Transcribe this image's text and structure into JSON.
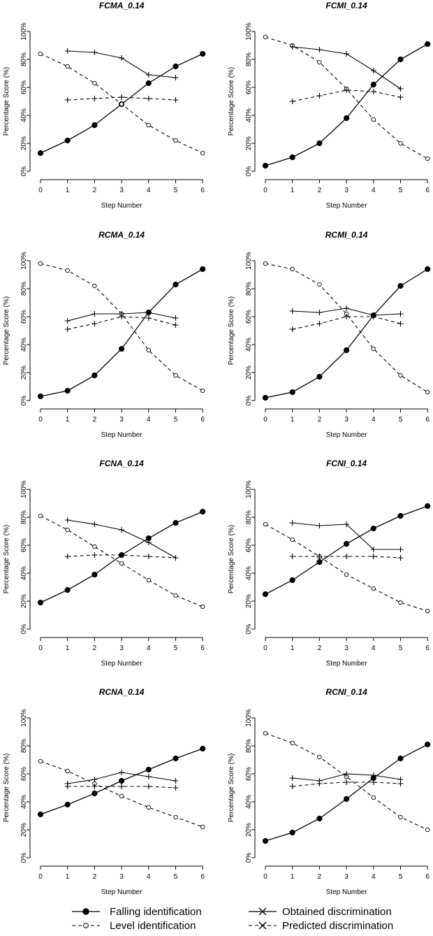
{
  "legend": {
    "falling": "Falling identification",
    "level": "Level identification",
    "obtained": "Obtained discrimination",
    "predicted": "Predicted discrimination"
  },
  "chart_data": [
    {
      "type": "line",
      "title": "FCMA_0.14",
      "xlabel": "Step Number",
      "ylabel": "Percentage Score (%)",
      "ylim": [
        0,
        100
      ],
      "x_ticks": [
        "0",
        "1",
        "2",
        "3",
        "4",
        "5",
        "6"
      ],
      "y_ticks": [
        "0%",
        "20%",
        "40%",
        "60%",
        "80%",
        "100%"
      ],
      "series": [
        {
          "key": "falling",
          "name": "Falling identification",
          "x": [
            0,
            1,
            2,
            3,
            4,
            5,
            6
          ],
          "values": [
            13,
            22,
            33,
            48,
            63,
            75,
            84
          ]
        },
        {
          "key": "level",
          "name": "Level identification",
          "x": [
            0,
            1,
            2,
            3,
            4,
            5,
            6
          ],
          "values": [
            84,
            75,
            63,
            48,
            33,
            22,
            13
          ]
        },
        {
          "key": "obtained",
          "name": "Obtained discrimination",
          "x": [
            1,
            2,
            3,
            4,
            5
          ],
          "values": [
            86,
            85,
            81,
            69,
            67
          ]
        },
        {
          "key": "predicted",
          "name": "Predicted discrimination",
          "x": [
            1,
            2,
            3,
            4,
            5
          ],
          "values": [
            51,
            52,
            53,
            52,
            51
          ]
        }
      ]
    },
    {
      "type": "line",
      "title": "FCMI_0.14",
      "xlabel": "Step Number",
      "ylabel": "Percentage Score (%)",
      "ylim": [
        0,
        100
      ],
      "x_ticks": [
        "0",
        "1",
        "2",
        "3",
        "4",
        "5",
        "6"
      ],
      "y_ticks": [
        "0%",
        "20%",
        "40%",
        "60%",
        "80%",
        "100%"
      ],
      "series": [
        {
          "key": "falling",
          "name": "Falling identification",
          "x": [
            0,
            1,
            2,
            3,
            4,
            5,
            6
          ],
          "values": [
            4,
            10,
            20,
            38,
            62,
            80,
            91
          ]
        },
        {
          "key": "level",
          "name": "Level identification",
          "x": [
            0,
            1,
            2,
            3,
            4,
            5,
            6
          ],
          "values": [
            96,
            90,
            78,
            59,
            37,
            20,
            9
          ]
        },
        {
          "key": "obtained",
          "name": "Obtained discrimination",
          "x": [
            1,
            2,
            3,
            4,
            5
          ],
          "values": [
            89,
            87,
            84,
            72,
            59
          ]
        },
        {
          "key": "predicted",
          "name": "Predicted discrimination",
          "x": [
            1,
            2,
            3,
            4,
            5
          ],
          "values": [
            50,
            54,
            58,
            57,
            53
          ]
        }
      ]
    },
    {
      "type": "line",
      "title": "RCMA_0.14",
      "xlabel": "Step Number",
      "ylabel": "Percentage Score (%)",
      "ylim": [
        0,
        100
      ],
      "x_ticks": [
        "0",
        "1",
        "2",
        "3",
        "4",
        "5",
        "6"
      ],
      "y_ticks": [
        "0%",
        "20%",
        "40%",
        "60%",
        "80%",
        "100%"
      ],
      "series": [
        {
          "key": "falling",
          "name": "Falling identification",
          "x": [
            0,
            1,
            2,
            3,
            4,
            5,
            6
          ],
          "values": [
            3,
            7,
            18,
            37,
            63,
            83,
            94
          ]
        },
        {
          "key": "level",
          "name": "Level identification",
          "x": [
            0,
            1,
            2,
            3,
            4,
            5,
            6
          ],
          "values": [
            98,
            93,
            82,
            62,
            36,
            18,
            7
          ]
        },
        {
          "key": "obtained",
          "name": "Obtained discrimination",
          "x": [
            1,
            2,
            3,
            4,
            5
          ],
          "values": [
            57,
            62,
            62,
            63,
            59
          ]
        },
        {
          "key": "predicted",
          "name": "Predicted discrimination",
          "x": [
            1,
            2,
            3,
            4,
            5
          ],
          "values": [
            51,
            55,
            60,
            59,
            54
          ]
        }
      ]
    },
    {
      "type": "line",
      "title": "RCMI_0.14",
      "xlabel": "Step Number",
      "ylabel": "Percentage Score (%)",
      "ylim": [
        0,
        100
      ],
      "x_ticks": [
        "0",
        "1",
        "2",
        "3",
        "4",
        "5",
        "6"
      ],
      "y_ticks": [
        "0%",
        "20%",
        "40%",
        "60%",
        "80%",
        "100%"
      ],
      "series": [
        {
          "key": "falling",
          "name": "Falling identification",
          "x": [
            0,
            1,
            2,
            3,
            4,
            5,
            6
          ],
          "values": [
            2,
            6,
            17,
            36,
            61,
            82,
            94
          ]
        },
        {
          "key": "level",
          "name": "Level identification",
          "x": [
            0,
            1,
            2,
            3,
            4,
            5,
            6
          ],
          "values": [
            98,
            94,
            83,
            62,
            37,
            18,
            6
          ]
        },
        {
          "key": "obtained",
          "name": "Obtained discrimination",
          "x": [
            1,
            2,
            3,
            4,
            5
          ],
          "values": [
            64,
            63,
            66,
            61,
            62
          ]
        },
        {
          "key": "predicted",
          "name": "Predicted discrimination",
          "x": [
            1,
            2,
            3,
            4,
            5
          ],
          "values": [
            51,
            55,
            60,
            60,
            55
          ]
        }
      ]
    },
    {
      "type": "line",
      "title": "FCNA_0.14",
      "xlabel": "Step Number",
      "ylabel": "Percentage Score (%)",
      "ylim": [
        0,
        100
      ],
      "x_ticks": [
        "0",
        "1",
        "2",
        "3",
        "4",
        "5",
        "6"
      ],
      "y_ticks": [
        "0%",
        "20%",
        "40%",
        "60%",
        "80%",
        "100%"
      ],
      "series": [
        {
          "key": "falling",
          "name": "Falling identification",
          "x": [
            0,
            1,
            2,
            3,
            4,
            5,
            6
          ],
          "values": [
            19,
            28,
            39,
            53,
            65,
            76,
            84
          ]
        },
        {
          "key": "level",
          "name": "Level identification",
          "x": [
            0,
            1,
            2,
            3,
            4,
            5,
            6
          ],
          "values": [
            81,
            71,
            59,
            47,
            35,
            24,
            16
          ]
        },
        {
          "key": "obtained",
          "name": "Obtained discrimination",
          "x": [
            1,
            2,
            3,
            4,
            5
          ],
          "values": [
            78,
            75,
            71,
            62,
            51
          ]
        },
        {
          "key": "predicted",
          "name": "Predicted discrimination",
          "x": [
            1,
            2,
            3,
            4,
            5
          ],
          "values": [
            52,
            53,
            53,
            52,
            51
          ]
        }
      ]
    },
    {
      "type": "line",
      "title": "FCNI_0.14",
      "xlabel": "Step Number",
      "ylabel": "Percentage Score (%)",
      "ylim": [
        0,
        100
      ],
      "x_ticks": [
        "0",
        "1",
        "2",
        "3",
        "4",
        "5",
        "6"
      ],
      "y_ticks": [
        "0%",
        "20%",
        "40%",
        "60%",
        "80%",
        "100%"
      ],
      "series": [
        {
          "key": "falling",
          "name": "Falling identification",
          "x": [
            0,
            1,
            2,
            3,
            4,
            5,
            6
          ],
          "values": [
            25,
            35,
            48,
            61,
            72,
            81,
            88
          ]
        },
        {
          "key": "level",
          "name": "Level identification",
          "x": [
            0,
            1,
            2,
            3,
            4,
            5,
            6
          ],
          "values": [
            75,
            64,
            52,
            39,
            29,
            19,
            13
          ]
        },
        {
          "key": "obtained",
          "name": "Obtained discrimination",
          "x": [
            1,
            2,
            3,
            4,
            5
          ],
          "values": [
            76,
            74,
            75,
            57,
            57
          ]
        },
        {
          "key": "predicted",
          "name": "Predicted discrimination",
          "x": [
            1,
            2,
            3,
            4,
            5
          ],
          "values": [
            52,
            52,
            52,
            52,
            51
          ]
        }
      ]
    },
    {
      "type": "line",
      "title": "RCNA_0.14",
      "xlabel": "Step Number",
      "ylabel": "Percentage Score (%)",
      "ylim": [
        0,
        100
      ],
      "x_ticks": [
        "0",
        "1",
        "2",
        "3",
        "4",
        "5",
        "6"
      ],
      "y_ticks": [
        "0%",
        "20%",
        "40%",
        "60%",
        "80%",
        "100%"
      ],
      "series": [
        {
          "key": "falling",
          "name": "Falling identification",
          "x": [
            0,
            1,
            2,
            3,
            4,
            5,
            6
          ],
          "values": [
            31,
            38,
            46,
            55,
            63,
            71,
            78
          ]
        },
        {
          "key": "level",
          "name": "Level identification",
          "x": [
            0,
            1,
            2,
            3,
            4,
            5,
            6
          ],
          "values": [
            69,
            62,
            53,
            44,
            36,
            29,
            22
          ]
        },
        {
          "key": "obtained",
          "name": "Obtained discrimination",
          "x": [
            1,
            2,
            3,
            4,
            5
          ],
          "values": [
            53,
            56,
            61,
            58,
            55
          ]
        },
        {
          "key": "predicted",
          "name": "Predicted discrimination",
          "x": [
            1,
            2,
            3,
            4,
            5
          ],
          "values": [
            51,
            51,
            51,
            51,
            50
          ]
        }
      ]
    },
    {
      "type": "line",
      "title": "RCNI_0.14",
      "xlabel": "Step Number",
      "ylabel": "Percentage Score (%)",
      "ylim": [
        0,
        100
      ],
      "x_ticks": [
        "0",
        "1",
        "2",
        "3",
        "4",
        "5",
        "6"
      ],
      "y_ticks": [
        "0%",
        "20%",
        "40%",
        "60%",
        "80%",
        "100%"
      ],
      "series": [
        {
          "key": "falling",
          "name": "Falling identification",
          "x": [
            0,
            1,
            2,
            3,
            4,
            5,
            6
          ],
          "values": [
            12,
            18,
            28,
            42,
            57,
            71,
            81
          ]
        },
        {
          "key": "level",
          "name": "Level identification",
          "x": [
            0,
            1,
            2,
            3,
            4,
            5,
            6
          ],
          "values": [
            89,
            82,
            72,
            58,
            43,
            29,
            20
          ]
        },
        {
          "key": "obtained",
          "name": "Obtained discrimination",
          "x": [
            1,
            2,
            3,
            4,
            5
          ],
          "values": [
            57,
            55,
            60,
            59,
            56
          ]
        },
        {
          "key": "predicted",
          "name": "Predicted discrimination",
          "x": [
            1,
            2,
            3,
            4,
            5
          ],
          "values": [
            51,
            53,
            54,
            54,
            53
          ]
        }
      ]
    }
  ]
}
